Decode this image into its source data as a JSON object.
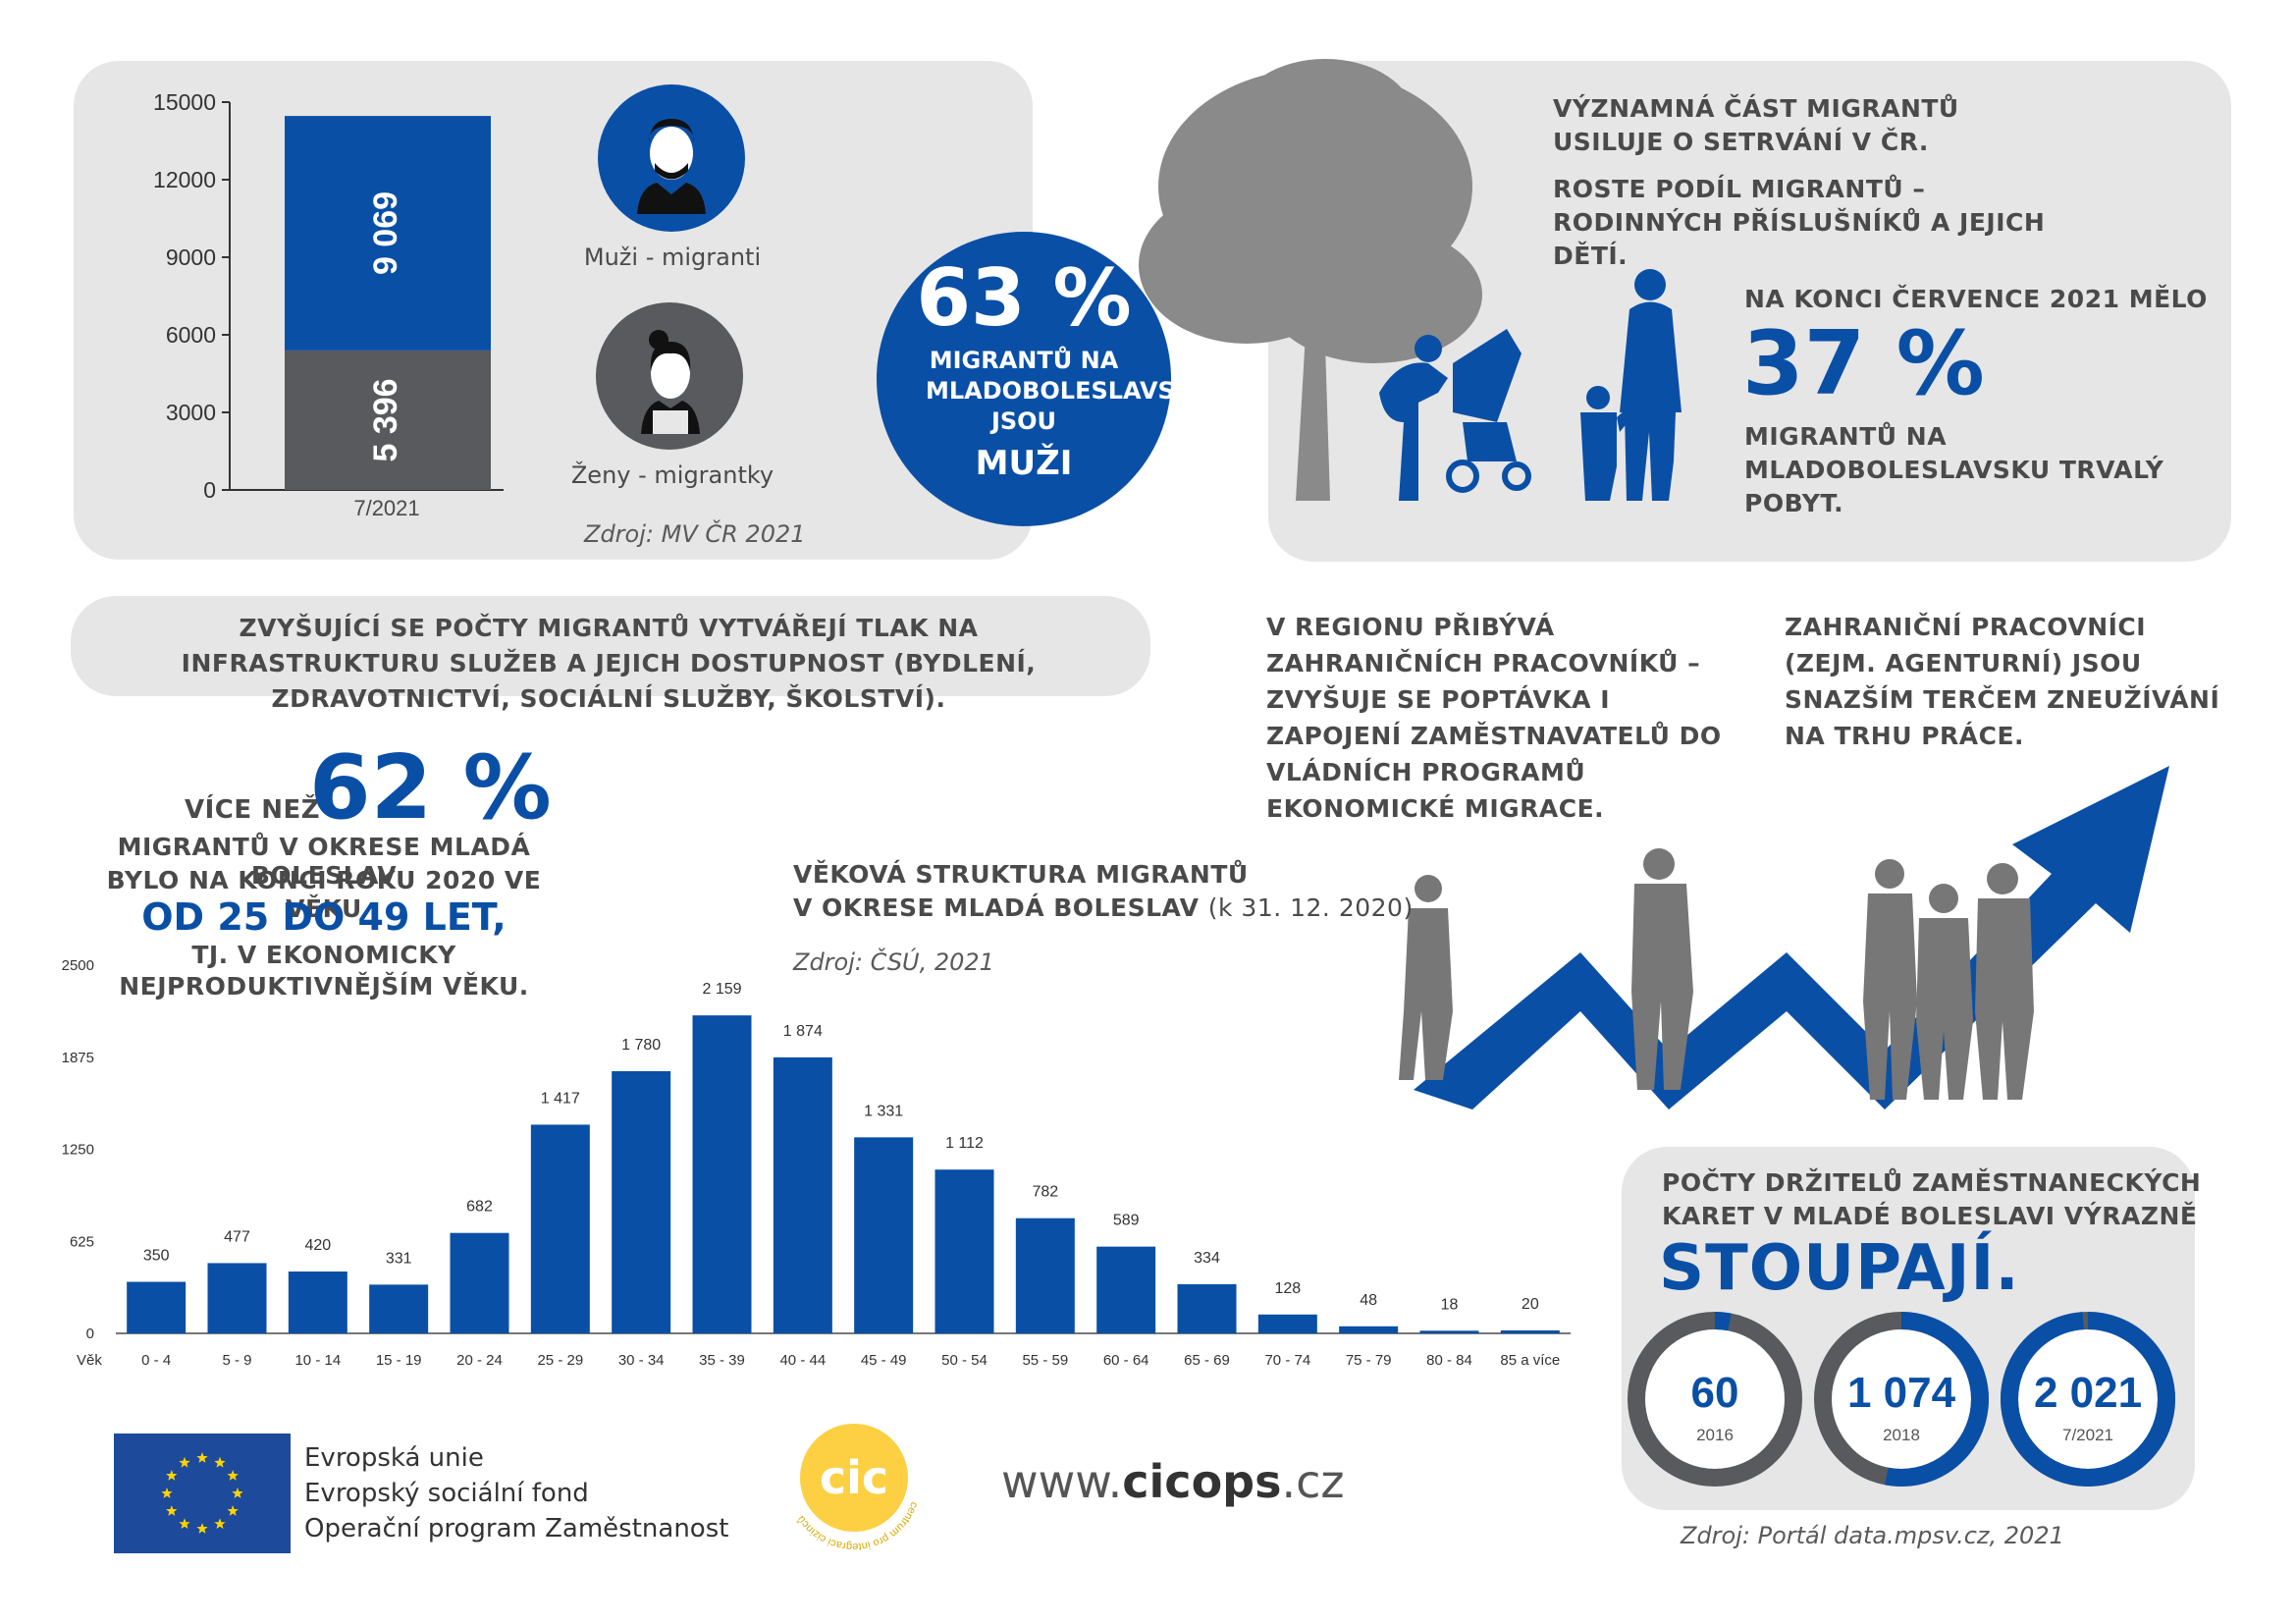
{
  "colors": {
    "blue": "#0a4fa6",
    "dark_gray": "#585a5d",
    "light_gray": "#e6e6e6",
    "silhouette": "#8a8a8a",
    "yellow": "#fcd042"
  },
  "gender": {
    "men_label": "Muži - migranti",
    "women_label": "Ženy - migrantky",
    "source": "Zdroj: MV ČR 2021",
    "big_pct": "63 %",
    "circle_text": "MIGRANTŮ NA MLADOBOLESLAVSKU JSOU",
    "circle_word": "MUŽI"
  },
  "family": {
    "line1": "VÝZNAMNÁ ČÁST MIGRANTŮ USILUJE O SETRVÁNÍ V ČR.",
    "line2": "ROSTE PODÍL MIGRANTŮ – RODINNÝCH PŘÍSLUŠNÍKŮ A JEJICH DĚTÍ.",
    "stat_intro": "NA KONCI ČERVENCE 2021 MĚLO",
    "stat_pct": "37 %",
    "stat_text": "MIGRANTŮ NA MLADOBOLESLAVSKU TRVALÝ POBYT."
  },
  "pressure": "ZVYŠUJÍCÍ SE POČTY MIGRANTŮ VYTVÁŘEJÍ TLAK NA INFRASTRUKTURU SLUŽEB A JEJICH DOSTUPNOST (BYDLENÍ, ZDRAVOTNICTVÍ, SOCIÁLNÍ SLUŽBY, ŠKOLSTVÍ).",
  "workers": {
    "text1": "V REGIONU PŘIBÝVÁ ZAHRANIČNÍCH PRACOVNÍKŮ – ZVYŠUJE SE POPTÁVKA I ZAPOJENÍ ZAMĚSTNAVATELŮ DO VLÁDNÍCH PROGRAMŮ EKONOMICKÉ MIGRACE.",
    "text2": "ZAHRANIČNÍ PRACOVNÍCI (ZEJM. AGENTURNÍ) JSOU SNAZŠÍM TERČEM ZNEUŽÍVÁNÍ NA TRHU PRÁCE."
  },
  "age_stat": {
    "prefix": "VÍCE NEŽ",
    "pct": "62 %",
    "line1": "MIGRANTŮ V OKRESE MLADÁ BOLESLAV",
    "line2": "BYLO NA KONCI ROKU 2020 VE VĚKU",
    "range": "OD 25 DO 49 LET,",
    "line3": "TJ. V EKONOMICKY",
    "line4": "NEJPRODUKTIVNĚJŠÍM VĚKU."
  },
  "age_chart_title_1": "VĚKOVÁ STRUKTURA MIGRANTŮ",
  "age_chart_title_2": "V OKRESE MLADÁ BOLESLAV",
  "age_chart_title_3": "(k 31. 12. 2020)",
  "age_chart_source": "Zdroj: ČSÚ, 2021",
  "cards": {
    "title1": "POČTY DRŽITELŮ ZAMĚSTNANECKÝCH",
    "title2": "KARET V MLADÉ BOLESLAVI VÝRAZNĚ",
    "big": "STOUPAJÍ.",
    "items": [
      {
        "value": "60",
        "year": "2016",
        "fraction": 0.03
      },
      {
        "value": "1 074",
        "year": "2018",
        "fraction": 0.53
      },
      {
        "value": "2 021",
        "year": "7/2021",
        "fraction": 0.99
      }
    ],
    "source": "Zdroj: Portál data.mpsv.cz, 2021"
  },
  "footer": {
    "eu1": "Evropská unie",
    "eu2": "Evropský sociální fond",
    "eu3": "Operační program Zaměstnanost",
    "logo": "cic",
    "logo_ring": "centrum pro integraci cizinců",
    "web_prefix": "www.",
    "web_bold": "cicops",
    "web_suffix": ".cz"
  },
  "chart_data": [
    {
      "type": "bar",
      "stacked": true,
      "categories": [
        "7/2021"
      ],
      "series": [
        {
          "name": "Ženy - migrantky",
          "values": [
            5396
          ],
          "labels": [
            "5 396"
          ],
          "color": "#585a5d"
        },
        {
          "name": "Muži - migranti",
          "values": [
            9069
          ],
          "labels": [
            "9 069"
          ],
          "color": "#0a4fa6"
        }
      ],
      "yticks": [
        "0",
        "3000",
        "6000",
        "9000",
        "12000",
        "15000"
      ],
      "ylim": [
        0,
        15000
      ],
      "legend": "right"
    },
    {
      "type": "bar",
      "title": "VĚKOVÁ STRUKTURA MIGRANTŮ V OKRESE MLADÁ BOLESLAV (k 31. 12. 2020)",
      "xlabel": "Věk",
      "categories": [
        "0 - 4",
        "5 - 9",
        "10 - 14",
        "15 - 19",
        "20 - 24",
        "25 - 29",
        "30 - 34",
        "35 - 39",
        "40 - 44",
        "45 - 49",
        "50 - 54",
        "55 - 59",
        "60 - 64",
        "65 - 69",
        "70 - 74",
        "75 - 79",
        "80 - 84",
        "85 a více"
      ],
      "values": [
        350,
        477,
        420,
        331,
        682,
        1417,
        1780,
        2159,
        1874,
        1331,
        1112,
        782,
        589,
        334,
        128,
        48,
        18,
        20
      ],
      "labels": [
        "350",
        "477",
        "420",
        "331",
        "682",
        "1 417",
        "1 780",
        "2 159",
        "1 874",
        "1 331",
        "1 112",
        "782",
        "589",
        "334",
        "128",
        "48",
        "18",
        "20"
      ],
      "yticks": [
        "0",
        "625",
        "1250",
        "1875",
        "2500"
      ],
      "ylim": [
        0,
        2500
      ]
    }
  ]
}
